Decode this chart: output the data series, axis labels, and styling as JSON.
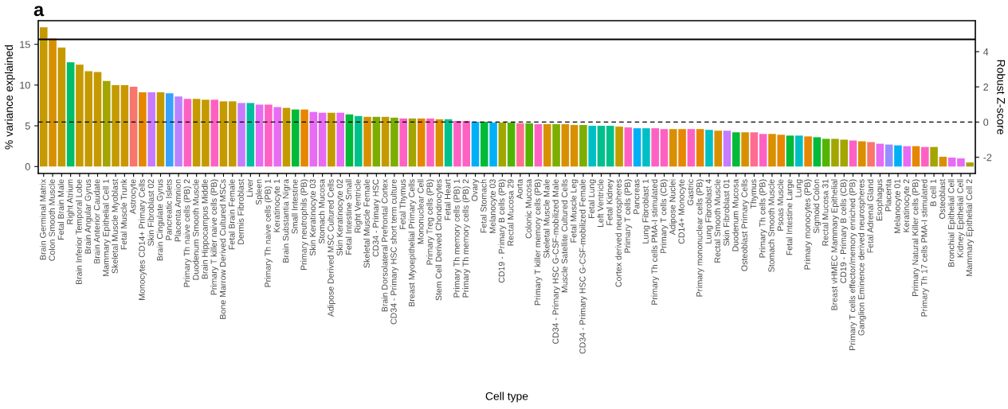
{
  "chart_data": {
    "type": "bar",
    "title": "a",
    "xlabel": "Cell type",
    "ylabel": "% variance explained",
    "y2label": "Robust Z-score",
    "categories": [
      "Brain Germinal Matrix",
      "Colon Smooth Muscle",
      "Fetal Brain Male",
      "Right Atrium",
      "Brain Inferior Temporal Lobe",
      "Brain Angular Gyrus",
      "Brain Anterior Caudate",
      "Mammary Epithelial Cell 1",
      "Skeletal Muscle Myoblast",
      "Fetal Muscle Trunk",
      "Astrocyte",
      "Monocytes CD14+ Primary Cells",
      "Skin Fibroblast 02",
      "Brain Cingulate Gyrus",
      "Pancreatic Islets",
      "Placenta Amnion",
      "Primary Th naive cells (PB) 2",
      "Duodenum Smooth Muscle",
      "Brain Hippocampus Middle",
      "Primary T killer naive cells (PB)",
      "Bone Marrow Derived Cultured MSCs",
      "Fetal Brain Female",
      "Dermis Fibroblast",
      "Liver",
      "Spleen",
      "Primary Th naive cells (PB) 1",
      "Keratinocyte 1",
      "Brain Substantia Nigra",
      "Small Intestine",
      "Primary neutrophils (PB)",
      "Skin Keratinocyte 03",
      "Stomach Mucosa",
      "Adipose Derived MSC Cultured Cells",
      "Skin Keratinocyte 02",
      "Fetal Intestine Small",
      "Right Ventricle",
      "Skeletal Muscle Female",
      "CD34 - Primary HSC",
      "Brain Dorsolateral Prefrontal Cortex",
      "CD34 - Primary HSC short term culture",
      "Fetal Thymus",
      "Breast Myoepithelial Primary Cells",
      "Mononuclear Cell",
      "Primary Treg cells (PB)",
      "Stem Cell Derived Chondrocytes",
      "Fetal Heart",
      "Primary Th memory cells (PB) 1",
      "Primary Th memory cells (PB) 2",
      "Ovary",
      "Fetal Stomach",
      "Melanocyte 03",
      "CD19 - Primary B cells (PB)",
      "Rectal Mucosa 29",
      "Aorta",
      "Colonic Mucosa",
      "Primary T killer memory cells (PB)",
      "Skeletal Muscle Male",
      "CD34 - Primary HSC G-CSF-mobilized Male",
      "Muscle Satellite Cultured Cells",
      "Fetal Muscle Leg",
      "CD34 - Primary HSC G-CSF-mobilized Female",
      "Fetal Lung",
      "Left Ventricle",
      "Fetal Kidney",
      "Cortex derived neurospheres",
      "Primary T cells (PB)",
      "Pancreas",
      "Lung Fibroblast 1",
      "Primary Th cells PMA-I stimulated",
      "Primary T cells (CB)",
      "Adipose Nuclei",
      "CD14+ Monocyte",
      "Gastric",
      "Primary mononuclear cells (PB)",
      "Lung Fibroblast 4",
      "Rectal Smooth Muscle",
      "Skin Fibroblast 01",
      "Duodenum Mucosa",
      "Osteoblast Primary Cells",
      "Thymus",
      "Primary Th cells (PB)",
      "Stomach Smooth Muscle",
      "Psoas Muscle",
      "Fetal Intestine Large",
      "Lung",
      "Primary monocytes (PB)",
      "Sigmoid Colon",
      "Rectal Mucosa 31",
      "Breast vHMEC Mammary Epithelial",
      "CD19 - Primary B cells (CB)",
      "Primary T cells effector/memory enriched (PB)",
      "Ganglion Eminence derived neurospheres",
      "Fetal Adrenal Gland",
      "Esophagus",
      "Placenta",
      "Melanocyte 01",
      "Keratinocyte 2",
      "Primary Natural Killer cells (PB)",
      "Primary Th 17 cells PMA-I stimulated",
      "B cell 1",
      "Osteoblast",
      "Bronchial Epithelial Cell",
      "Kidney Epithelial Cell",
      "Mammary Epithelial Cell 2"
    ],
    "values": [
      17.1,
      15.7,
      14.6,
      12.8,
      12.5,
      11.7,
      11.6,
      10.5,
      10.0,
      10.0,
      9.8,
      9.1,
      9.1,
      9.1,
      9.0,
      8.6,
      8.3,
      8.3,
      8.2,
      8.2,
      8.0,
      8.0,
      7.8,
      7.8,
      7.6,
      7.6,
      7.3,
      7.2,
      7.0,
      7.0,
      6.7,
      6.6,
      6.6,
      6.6,
      6.4,
      6.2,
      6.1,
      6.1,
      6.1,
      6.0,
      5.9,
      5.9,
      5.9,
      5.9,
      5.8,
      5.8,
      5.6,
      5.6,
      5.5,
      5.5,
      5.4,
      5.4,
      5.4,
      5.3,
      5.3,
      5.2,
      5.2,
      5.2,
      5.2,
      5.1,
      5.1,
      5.0,
      5.0,
      5.0,
      4.9,
      4.8,
      4.7,
      4.7,
      4.7,
      4.6,
      4.6,
      4.6,
      4.6,
      4.6,
      4.5,
      4.4,
      4.4,
      4.2,
      4.2,
      4.2,
      4.0,
      4.0,
      3.9,
      3.8,
      3.8,
      3.7,
      3.6,
      3.4,
      3.4,
      3.3,
      3.2,
      3.1,
      3.0,
      2.8,
      2.7,
      2.6,
      2.5,
      2.5,
      2.4,
      2.4,
      1.2,
      1.1,
      1.0,
      0.5
    ],
    "colors": [
      "#c49a00",
      "#d89000",
      "#c49a00",
      "#00be67",
      "#c49a00",
      "#c49a00",
      "#c49a00",
      "#a3a500",
      "#c49a00",
      "#c99800",
      "#f8766d",
      "#e58700",
      "#c77cff",
      "#c49a00",
      "#35a2ff",
      "#b983ff",
      "#ff61c3",
      "#c49a00",
      "#c49a00",
      "#ff61c3",
      "#c49a00",
      "#c49a00",
      "#c77cff",
      "#00bfa0",
      "#e76bf3",
      "#ff61c3",
      "#e76bf3",
      "#c49a00",
      "#00ba38",
      "#e58700",
      "#e76bf3",
      "#e76bf3",
      "#c49a00",
      "#e76bf3",
      "#00ba38",
      "#00c08b",
      "#d89000",
      "#7cae00",
      "#c49a00",
      "#7cae00",
      "#ff61c3",
      "#a3a500",
      "#e58700",
      "#ff61c3",
      "#d89000",
      "#00c08b",
      "#ff61c3",
      "#ff61c3",
      "#00b0f6",
      "#00ba38",
      "#00b0f6",
      "#a3a500",
      "#53b400",
      "#ff6c91",
      "#53b400",
      "#ff61c3",
      "#d89000",
      "#7cae00",
      "#d89000",
      "#d89000",
      "#7cae00",
      "#00bfc4",
      "#00c08b",
      "#00c08b",
      "#c49a00",
      "#ff61c3",
      "#00b0f6",
      "#00bfc4",
      "#ff61c3",
      "#ff61c3",
      "#d89000",
      "#e58700",
      "#ff61c3",
      "#e58700",
      "#00bfc4",
      "#d89000",
      "#c77cff",
      "#00ba38",
      "#d89000",
      "#ff6c91",
      "#ff61c3",
      "#d89000",
      "#e58700",
      "#00ba38",
      "#00bfc4",
      "#e58700",
      "#00ba38",
      "#53b400",
      "#a3a500",
      "#a3a500",
      "#ff61c3",
      "#d89000",
      "#f8766d",
      "#e76bf3",
      "#9590ff",
      "#00b0f6",
      "#e76bf3",
      "#e58700",
      "#ff61c3",
      "#a3a500",
      "#d89000",
      "#e76bf3",
      "#e76bf3",
      "#a3a500"
    ],
    "ylim": [
      -0.85,
      17.9
    ],
    "yticks": [
      0,
      5,
      10,
      15
    ],
    "y2lim": [
      -2.92,
      5.76
    ],
    "y2ticks": [
      -2,
      0,
      2,
      4
    ],
    "ref_lines": [
      {
        "axis": "y2",
        "value": 0,
        "line_style": "dashed",
        "color": "#000000"
      },
      {
        "axis": "y2",
        "value": 4.7,
        "line_style": "solid",
        "color": "#000000"
      }
    ],
    "grid": false,
    "legend": false
  }
}
